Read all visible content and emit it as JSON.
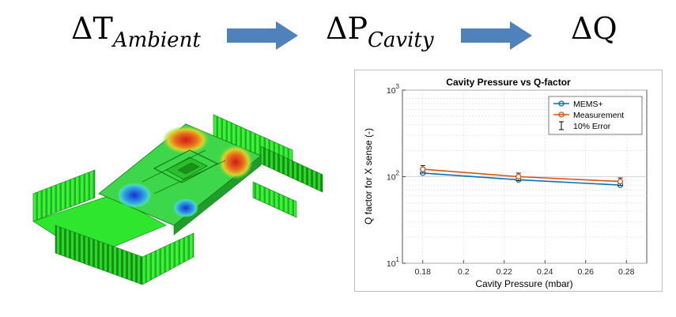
{
  "header": {
    "ambient": {
      "symbol": "ΔT",
      "subscript": "Ambient"
    },
    "cavity": {
      "symbol": "ΔP",
      "subscript": "Cavity"
    },
    "q": {
      "symbol": "ΔQ"
    }
  },
  "colors": {
    "arrow": "#4f81bd",
    "mems": "#0072bd",
    "measurement": "#d95319",
    "error": "#000000",
    "mesh_green": "#2ee62e"
  },
  "chart_data": {
    "type": "line",
    "title": "Cavity Pressure vs Q-factor",
    "xlabel": "Cavity Pressure (mbar)",
    "ylabel": "Q factor for X sense (-)",
    "xlim": [
      0.17,
      0.29
    ],
    "ylim": [
      10,
      1000
    ],
    "yscale": "log",
    "grid": true,
    "legend_position": "top-right",
    "x_ticks": [
      "0.18",
      "0.2",
      "0.22",
      "0.24",
      "0.26",
      "0.28"
    ],
    "y_ticks": [
      {
        "base": "10",
        "exp": "1"
      },
      {
        "base": "10",
        "exp": "2"
      },
      {
        "base": "10",
        "exp": "3"
      }
    ],
    "x": [
      0.18,
      0.227,
      0.277
    ],
    "series": [
      {
        "name": "MEMS+",
        "values": [
          110,
          92,
          80
        ],
        "color": "#0072bd"
      },
      {
        "name": "Measurement",
        "values": [
          122,
          100,
          88
        ],
        "color": "#d95319",
        "error": [
          12,
          10,
          8.8
        ]
      }
    ],
    "legend_error_label": "10% Error"
  }
}
